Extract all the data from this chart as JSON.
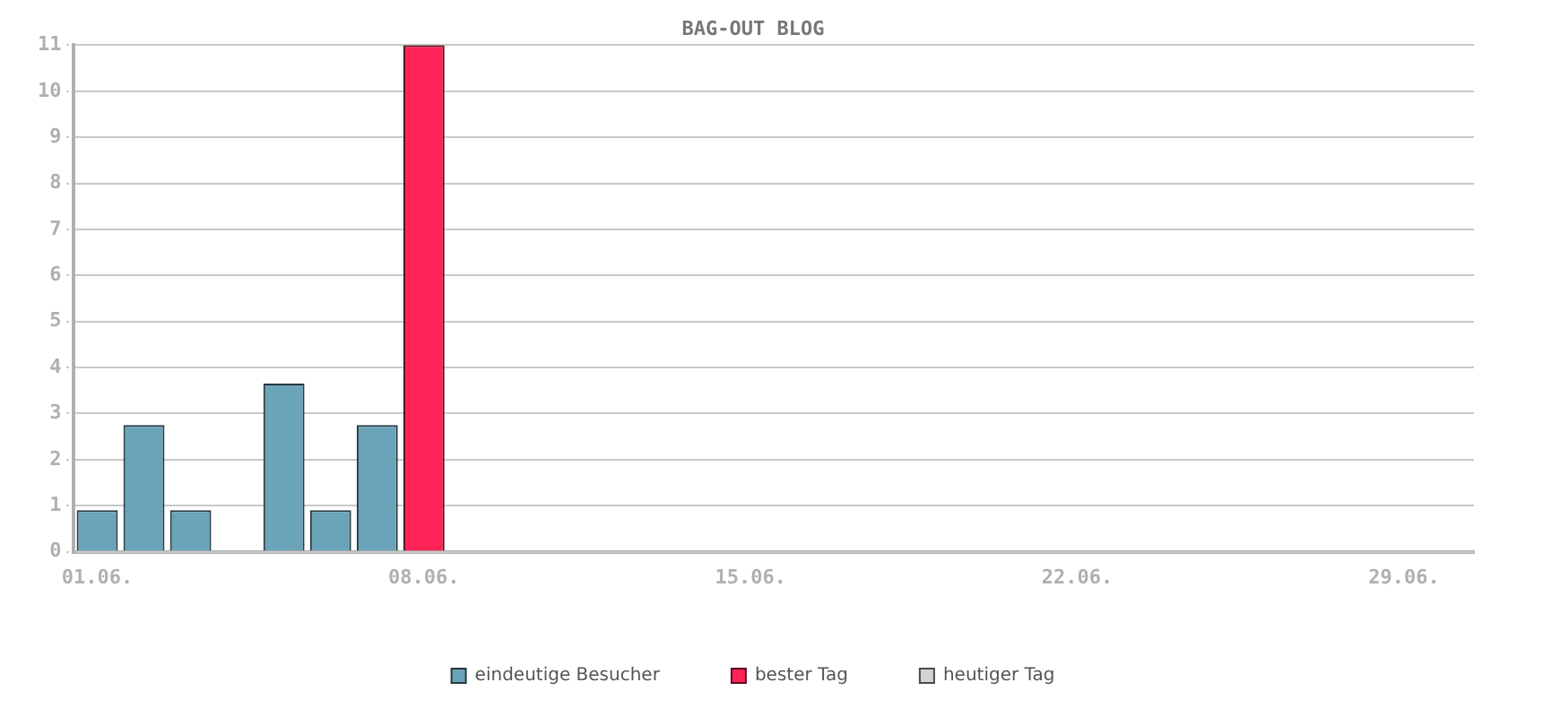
{
  "chart_data": {
    "type": "bar",
    "title": "BAG-OUT BLOG",
    "categories": [
      "01.06.",
      null,
      null,
      null,
      null,
      null,
      null,
      "08.06.",
      null,
      null,
      null,
      null,
      null,
      null,
      "15.06.",
      null,
      null,
      null,
      null,
      null,
      null,
      "22.06.",
      null,
      null,
      null,
      null,
      null,
      null,
      "29.06.",
      null
    ],
    "series": [
      {
        "name": "eindeutige Besucher",
        "color": "#6ba3b8",
        "values": [
          0.9,
          2.75,
          0.9,
          0,
          3.65,
          0.9,
          2.75,
          null,
          null,
          null,
          null,
          null,
          null,
          null,
          null,
          null,
          null,
          null,
          null,
          null,
          null,
          null,
          null,
          null,
          null,
          null,
          null,
          null,
          null,
          null
        ]
      },
      {
        "name": "bester Tag",
        "color": "#ff2358",
        "values": [
          null,
          null,
          null,
          null,
          null,
          null,
          null,
          11,
          null,
          null,
          null,
          null,
          null,
          null,
          null,
          null,
          null,
          null,
          null,
          null,
          null,
          null,
          null,
          null,
          null,
          null,
          null,
          null,
          null,
          null
        ]
      },
      {
        "name": "heutiger Tag",
        "color": "#d3d3d3",
        "values": [
          null,
          null,
          null,
          null,
          null,
          null,
          null,
          null,
          null,
          null,
          null,
          null,
          null,
          null,
          null,
          null,
          null,
          null,
          null,
          null,
          null,
          null,
          null,
          null,
          null,
          null,
          null,
          null,
          null,
          null
        ]
      }
    ],
    "ylim": [
      0,
      11
    ],
    "yticks": [
      0,
      1,
      2,
      3,
      4,
      5,
      6,
      7,
      8,
      9,
      10,
      11
    ],
    "grid": "y",
    "legend": "bottom"
  }
}
